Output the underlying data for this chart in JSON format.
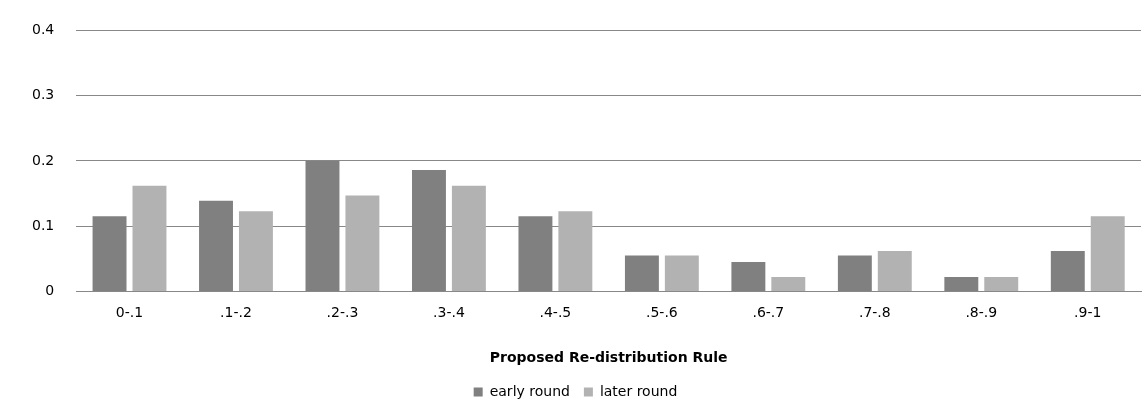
{
  "chart_data": {
    "type": "bar",
    "xlabel": "Proposed Re-distribution Rule",
    "categories": [
      "0-.1",
      ".1-.2",
      ".2-.3",
      ".3-.4",
      ".4-.5",
      ".5-.6",
      ".6-.7",
      ".7-.8",
      ".8-.9",
      ".9-1"
    ],
    "series": [
      {
        "name": "early round",
        "color": "#808080",
        "values": [
          0.115,
          0.139,
          0.2,
          0.186,
          0.115,
          0.055,
          0.045,
          0.055,
          0.022,
          0.062
        ]
      },
      {
        "name": "later round",
        "color": "#b2b2b2",
        "values": [
          0.162,
          0.123,
          0.147,
          0.162,
          0.123,
          0.055,
          0.022,
          0.062,
          0.022,
          0.115
        ]
      }
    ],
    "ylim": [
      0,
      0.4
    ],
    "yticks": [
      0,
      0.1,
      0.2,
      0.3,
      0.4
    ],
    "grid": "y",
    "legend": "bottom"
  }
}
